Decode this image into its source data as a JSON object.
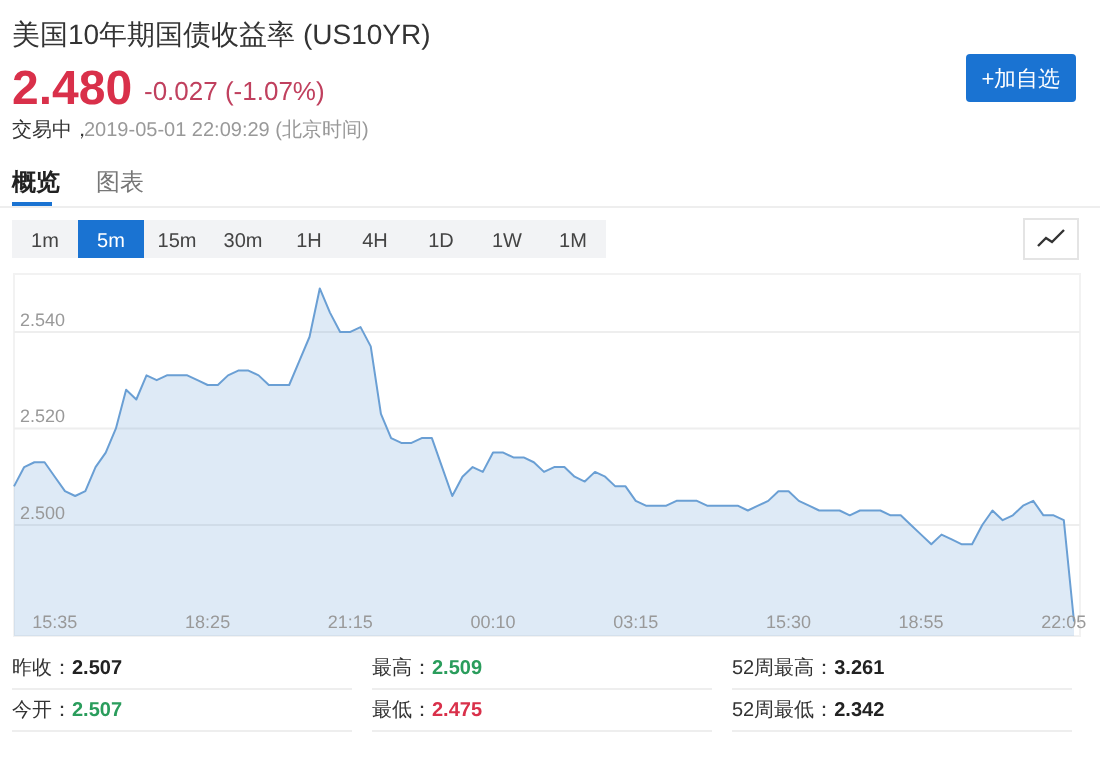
{
  "chart_data": [
    {
      "type": "other",
      "title": "美国10年期国债收益率 (US10YR)",
      "annotations": [
        "2.480",
        "-0.027 (-1.07%)",
        "交易中，",
        "2019-05-01 22:09:29 (北京时间)",
        "+加自选",
        "概览",
        "图表",
        "1m",
        "5m",
        "15m",
        "30m",
        "1H",
        "4H",
        "1D",
        "1W",
        "1M"
      ]
    },
    {
      "type": "area",
      "color": "#6a9fd4",
      "grid": "y",
      "categories": [
        null,
        null,
        null,
        null,
        "15:35",
        null,
        null,
        null,
        null,
        null,
        null,
        null,
        null,
        null,
        null,
        null,
        null,
        null,
        null,
        "18:25",
        null,
        null,
        null,
        null,
        null,
        null,
        null,
        null,
        null,
        null,
        null,
        null,
        null,
        "21:15",
        null,
        null,
        null,
        null,
        null,
        null,
        null,
        null,
        null,
        null,
        null,
        null,
        null,
        "00:10",
        null,
        null,
        null,
        null,
        null,
        null,
        null,
        null,
        null,
        null,
        null,
        null,
        null,
        "03:15",
        null,
        null,
        null,
        null,
        null,
        null,
        null,
        null,
        null,
        null,
        null,
        null,
        null,
        null,
        "15:30",
        null,
        null,
        null,
        null,
        null,
        null,
        null,
        null,
        null,
        null,
        null,
        null,
        "18:55",
        null,
        null,
        null,
        null,
        null,
        null,
        null,
        null,
        null,
        null,
        null,
        null,
        null,
        "22:05",
        null
      ],
      "values": [
        2.508,
        2.512,
        2.513,
        2.513,
        2.51,
        2.507,
        2.506,
        2.507,
        2.512,
        2.515,
        2.52,
        2.528,
        2.526,
        2.531,
        2.53,
        2.531,
        2.531,
        2.531,
        2.53,
        2.529,
        2.529,
        2.531,
        2.532,
        2.532,
        2.531,
        2.529,
        2.529,
        2.529,
        2.534,
        2.539,
        2.549,
        2.544,
        2.54,
        2.54,
        2.541,
        2.537,
        2.523,
        2.518,
        2.517,
        2.517,
        2.518,
        2.518,
        2.512,
        2.506,
        2.51,
        2.512,
        2.511,
        2.515,
        2.515,
        2.514,
        2.514,
        2.513,
        2.511,
        2.512,
        2.512,
        2.51,
        2.509,
        2.511,
        2.51,
        2.508,
        2.508,
        2.505,
        2.504,
        2.504,
        2.504,
        2.505,
        2.505,
        2.505,
        2.504,
        2.504,
        2.504,
        2.504,
        2.503,
        2.504,
        2.505,
        2.507,
        2.507,
        2.505,
        2.504,
        2.503,
        2.503,
        2.503,
        2.502,
        2.503,
        2.503,
        2.503,
        2.502,
        2.502,
        2.5,
        2.498,
        2.496,
        2.498,
        2.497,
        2.496,
        2.496,
        2.5,
        2.503,
        2.501,
        2.502,
        2.504,
        2.505,
        2.502,
        2.502,
        2.501,
        2.48
      ],
      "ylim": [
        2.477,
        2.552
      ],
      "yticks": [
        {
          "value": 2.5,
          "label": "2.500"
        },
        {
          "value": 2.52,
          "label": "2.520"
        },
        {
          "value": 2.54,
          "label": "2.540"
        }
      ]
    },
    {
      "type": "other",
      "annotations": [
        "昨收：",
        "2.507",
        "最高：",
        "2.509",
        "52周最高：",
        "3.261",
        "今开：",
        "2.507",
        "最低：",
        "2.475",
        "52周最低：",
        "2.342"
      ]
    }
  ]
}
